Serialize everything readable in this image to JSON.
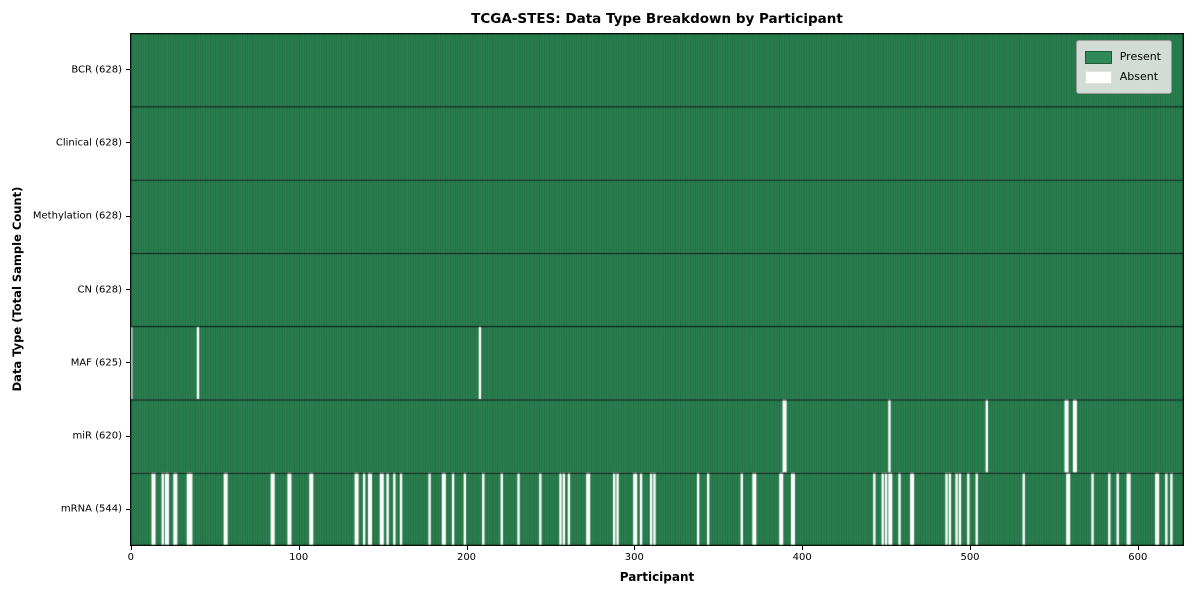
{
  "chart_data": {
    "type": "heatmap",
    "title": "TCGA-STES: Data Type Breakdown by Participant",
    "xlabel": "Participant",
    "ylabel": "Data Type (Total Sample Count)",
    "x_ticks": [
      0,
      100,
      200,
      300,
      400,
      500,
      600
    ],
    "n_participants": 628,
    "present_color": "#2e8b57",
    "present_edge_color": "rgba(0,0,0,0.38)",
    "absent_color": "#ffffff",
    "grid": false,
    "legend": {
      "position": "upper right",
      "entries": [
        {
          "label": "Present",
          "color": "#2e8b57"
        },
        {
          "label": "Absent",
          "color": "#ffffff"
        }
      ]
    },
    "rows": [
      {
        "label": "BCR (628)",
        "data_type": "BCR",
        "present_count": 628,
        "absent_participants": []
      },
      {
        "label": "Clinical (628)",
        "data_type": "Clinical",
        "present_count": 628,
        "absent_participants": []
      },
      {
        "label": "Methylation (628)",
        "data_type": "Methylation",
        "present_count": 628,
        "absent_participants": []
      },
      {
        "label": "CN (628)",
        "data_type": "CN",
        "present_count": 628,
        "absent_participants": []
      },
      {
        "label": "MAF (625)",
        "data_type": "MAF",
        "present_count": 625,
        "absent_participants": [
          0,
          40,
          208
        ]
      },
      {
        "label": "miR (620)",
        "data_type": "miR",
        "present_count": 620,
        "absent_participants": [
          389,
          390,
          452,
          510,
          557,
          558,
          562,
          563
        ]
      },
      {
        "label": "mRNA (544)",
        "data_type": "mRNA",
        "present_count": 544,
        "absent_participants": [
          13,
          14,
          19,
          21,
          22,
          26,
          27,
          34,
          35,
          36,
          56,
          57,
          84,
          85,
          94,
          95,
          107,
          108,
          134,
          135,
          139,
          142,
          143,
          149,
          150,
          153,
          157,
          161,
          178,
          186,
          187,
          192,
          199,
          210,
          221,
          231,
          244,
          256,
          258,
          261,
          272,
          273,
          288,
          290,
          300,
          301,
          304,
          310,
          312,
          338,
          344,
          364,
          371,
          372,
          387,
          388,
          394,
          395,
          443,
          448,
          450,
          452,
          453,
          458,
          465,
          466,
          486,
          488,
          492,
          494,
          499,
          504,
          532,
          558,
          559,
          573,
          583,
          588,
          594,
          595,
          611,
          612,
          617,
          620
        ]
      }
    ]
  }
}
